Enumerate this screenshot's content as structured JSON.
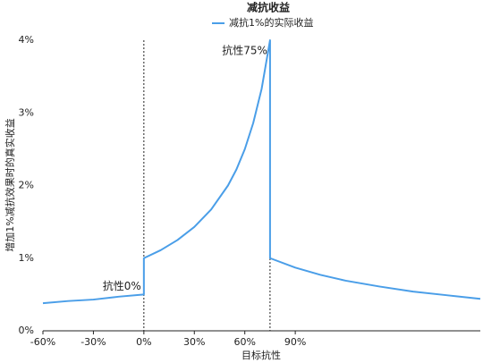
{
  "chart_data": {
    "type": "line",
    "title": "减抗收益",
    "x_label": "目标抗性",
    "y_label": "增加1%减抗效果时的真实收益",
    "x": [
      -60,
      -45,
      -30,
      -15,
      0,
      0,
      10,
      20,
      30,
      40,
      50,
      55,
      60,
      65,
      70,
      75,
      75,
      90,
      105,
      120,
      140,
      160,
      180,
      200
    ],
    "series": [
      {
        "name": "减抗1%的实际收益",
        "color": "#4a9ee8",
        "values": [
          0.38,
          0.41,
          0.43,
          0.47,
          0.5,
          1.0,
          1.11,
          1.25,
          1.43,
          1.67,
          2.0,
          2.22,
          2.5,
          2.86,
          3.33,
          4.0,
          1.0,
          0.87,
          0.77,
          0.69,
          0.61,
          0.54,
          0.49,
          0.44
        ]
      }
    ],
    "xlim": [
      -60,
      200
    ],
    "xticks": [
      {
        "value": -60,
        "label": "-60%"
      },
      {
        "value": -30,
        "label": "-30%"
      },
      {
        "value": 0,
        "label": "0%"
      },
      {
        "value": 30,
        "label": "30%"
      },
      {
        "value": 60,
        "label": "60%"
      },
      {
        "value": 90,
        "label": "90%"
      }
    ],
    "ylim": [
      0,
      4
    ],
    "yticks": [
      {
        "value": 0,
        "label": "0%"
      },
      {
        "value": 1,
        "label": "1%"
      },
      {
        "value": 2,
        "label": "2%"
      },
      {
        "value": 3,
        "label": "3%"
      },
      {
        "value": 4,
        "label": "4%"
      }
    ],
    "vlines": [
      0,
      75
    ],
    "annotations": [
      "抗性0%",
      "抗性75%"
    ],
    "grid": false
  }
}
